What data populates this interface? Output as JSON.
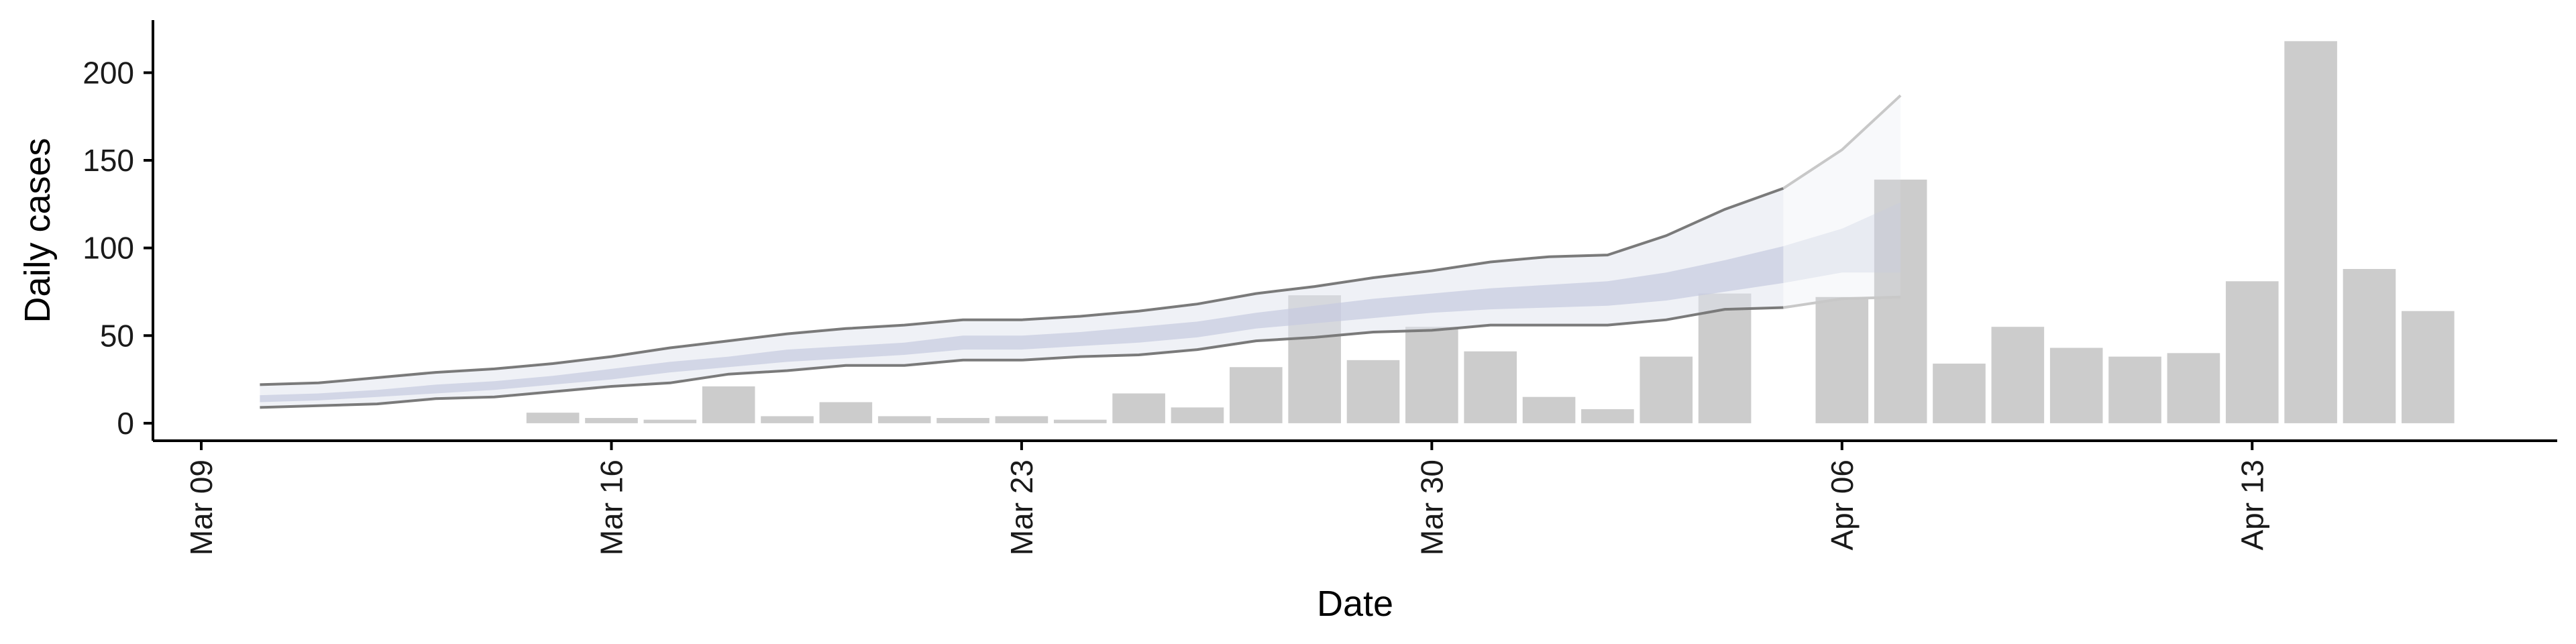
{
  "chart_data": {
    "type": "bar",
    "title": "",
    "xlabel": "Date",
    "ylabel": "Daily cases",
    "x_axis": {
      "type": "date",
      "range": [
        "2020-03-07",
        "2020-04-19"
      ],
      "ticks": [
        {
          "date": "2020-03-09",
          "label": "Mar 09"
        },
        {
          "date": "2020-03-16",
          "label": "Mar 16"
        },
        {
          "date": "2020-03-23",
          "label": "Mar 23"
        },
        {
          "date": "2020-03-30",
          "label": "Mar 30"
        },
        {
          "date": "2020-04-06",
          "label": "Apr 06"
        },
        {
          "date": "2020-04-13",
          "label": "Apr 13"
        }
      ]
    },
    "y_axis": {
      "range": [
        -10,
        230
      ],
      "ticks": [
        0,
        50,
        100,
        150,
        200
      ]
    },
    "grid": false,
    "legend": "none",
    "colors": {
      "bars": "#cccccc",
      "band_outer": "#dfe3ee",
      "band_inner": "#c6cbe0",
      "bound_lines_observed": "#7a7a7a",
      "bound_lines_projected": "#c8c8c8",
      "axis": "#000000"
    },
    "bars": [
      {
        "date": "2020-03-15",
        "value": 6
      },
      {
        "date": "2020-03-16",
        "value": 3
      },
      {
        "date": "2020-03-17",
        "value": 2
      },
      {
        "date": "2020-03-18",
        "value": 21
      },
      {
        "date": "2020-03-19",
        "value": 4
      },
      {
        "date": "2020-03-20",
        "value": 12
      },
      {
        "date": "2020-03-21",
        "value": 4
      },
      {
        "date": "2020-03-22",
        "value": 3
      },
      {
        "date": "2020-03-23",
        "value": 4
      },
      {
        "date": "2020-03-24",
        "value": 2
      },
      {
        "date": "2020-03-25",
        "value": 17
      },
      {
        "date": "2020-03-26",
        "value": 9
      },
      {
        "date": "2020-03-27",
        "value": 32
      },
      {
        "date": "2020-03-28",
        "value": 73
      },
      {
        "date": "2020-03-29",
        "value": 36
      },
      {
        "date": "2020-03-30",
        "value": 55
      },
      {
        "date": "2020-03-31",
        "value": 41
      },
      {
        "date": "2020-04-01",
        "value": 15
      },
      {
        "date": "2020-04-02",
        "value": 8
      },
      {
        "date": "2020-04-03",
        "value": 38
      },
      {
        "date": "2020-04-04",
        "value": 74
      },
      {
        "date": "2020-04-06",
        "value": 72
      },
      {
        "date": "2020-04-07",
        "value": 139
      },
      {
        "date": "2020-04-08",
        "value": 34
      },
      {
        "date": "2020-04-09",
        "value": 55
      },
      {
        "date": "2020-04-10",
        "value": 43
      },
      {
        "date": "2020-04-11",
        "value": 38
      },
      {
        "date": "2020-04-12",
        "value": 40
      },
      {
        "date": "2020-04-13",
        "value": 81
      },
      {
        "date": "2020-04-14",
        "value": 218
      },
      {
        "date": "2020-04-15",
        "value": 88
      },
      {
        "date": "2020-04-16",
        "value": 64
      }
    ],
    "band": [
      {
        "date": "2020-03-10",
        "lo90": 9,
        "lo50": 12,
        "hi50": 16,
        "hi90": 22
      },
      {
        "date": "2020-03-11",
        "lo90": 10,
        "lo50": 13,
        "hi50": 17,
        "hi90": 23
      },
      {
        "date": "2020-03-12",
        "lo90": 11,
        "lo50": 15,
        "hi50": 19,
        "hi90": 26
      },
      {
        "date": "2020-03-13",
        "lo90": 14,
        "lo50": 17,
        "hi50": 22,
        "hi90": 29
      },
      {
        "date": "2020-03-14",
        "lo90": 15,
        "lo50": 19,
        "hi50": 24,
        "hi90": 31
      },
      {
        "date": "2020-03-15",
        "lo90": 18,
        "lo50": 22,
        "hi50": 27,
        "hi90": 34
      },
      {
        "date": "2020-03-16",
        "lo90": 21,
        "lo50": 25,
        "hi50": 31,
        "hi90": 38
      },
      {
        "date": "2020-03-17",
        "lo90": 23,
        "lo50": 29,
        "hi50": 35,
        "hi90": 43
      },
      {
        "date": "2020-03-18",
        "lo90": 28,
        "lo50": 32,
        "hi50": 38,
        "hi90": 47
      },
      {
        "date": "2020-03-19",
        "lo90": 30,
        "lo50": 35,
        "hi50": 42,
        "hi90": 51
      },
      {
        "date": "2020-03-20",
        "lo90": 33,
        "lo50": 37,
        "hi50": 44,
        "hi90": 54
      },
      {
        "date": "2020-03-21",
        "lo90": 33,
        "lo50": 39,
        "hi50": 46,
        "hi90": 56
      },
      {
        "date": "2020-03-22",
        "lo90": 36,
        "lo50": 42,
        "hi50": 50,
        "hi90": 59
      },
      {
        "date": "2020-03-23",
        "lo90": 36,
        "lo50": 42,
        "hi50": 50,
        "hi90": 59
      },
      {
        "date": "2020-03-24",
        "lo90": 38,
        "lo50": 44,
        "hi50": 52,
        "hi90": 61
      },
      {
        "date": "2020-03-25",
        "lo90": 39,
        "lo50": 46,
        "hi50": 55,
        "hi90": 64
      },
      {
        "date": "2020-03-26",
        "lo90": 42,
        "lo50": 49,
        "hi50": 58,
        "hi90": 68
      },
      {
        "date": "2020-03-27",
        "lo90": 47,
        "lo50": 54,
        "hi50": 63,
        "hi90": 74
      },
      {
        "date": "2020-03-28",
        "lo90": 49,
        "lo50": 57,
        "hi50": 67,
        "hi90": 78
      },
      {
        "date": "2020-03-29",
        "lo90": 52,
        "lo50": 60,
        "hi50": 71,
        "hi90": 83
      },
      {
        "date": "2020-03-30",
        "lo90": 53,
        "lo50": 63,
        "hi50": 74,
        "hi90": 87
      },
      {
        "date": "2020-03-31",
        "lo90": 56,
        "lo50": 65,
        "hi50": 77,
        "hi90": 92
      },
      {
        "date": "2020-04-01",
        "lo90": 56,
        "lo50": 66,
        "hi50": 79,
        "hi90": 95
      },
      {
        "date": "2020-04-02",
        "lo90": 56,
        "lo50": 67,
        "hi50": 81,
        "hi90": 96
      },
      {
        "date": "2020-04-03",
        "lo90": 59,
        "lo50": 70,
        "hi50": 86,
        "hi90": 107
      },
      {
        "date": "2020-04-04",
        "lo90": 65,
        "lo50": 75,
        "hi50": 93,
        "hi90": 122
      },
      {
        "date": "2020-04-05",
        "lo90": 66,
        "lo50": 80,
        "hi50": 101,
        "hi90": 134
      },
      {
        "date": "2020-04-06",
        "lo90": 71,
        "lo50": 86,
        "hi50": 111,
        "hi90": 156
      },
      {
        "date": "2020-04-07",
        "lo90": 72,
        "lo50": 86,
        "hi50": 126,
        "hi90": 187
      }
    ],
    "projection_start": "2020-04-05"
  }
}
